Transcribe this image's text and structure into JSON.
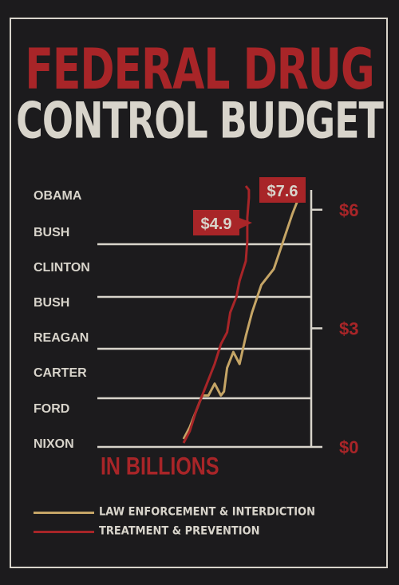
{
  "title_line1": "FEDERAL DRUG",
  "title_line2": "CONTROL BUDGET",
  "colors": {
    "background": "#1c1b1d",
    "accent_red": "#a82528",
    "gold": "#c5a566",
    "cream": "#d8d4cb"
  },
  "chart_data": {
    "type": "line",
    "title": "FEDERAL DRUG CONTROL BUDGET",
    "unit_label": "IN BILLIONS",
    "y_axis": {
      "ticks": [
        "$0",
        "$3",
        "$6"
      ],
      "tick_values": [
        0,
        3,
        6
      ],
      "range": [
        0,
        6.5
      ]
    },
    "presidencies": [
      "OBAMA",
      "BUSH",
      "CLINTON",
      "BUSH",
      "REAGAN",
      "CARTER",
      "FORD",
      "NIXON"
    ],
    "grid": true,
    "series": [
      {
        "name": "LAW ENFORCEMENT & INTERDICTION",
        "color": "#c5a566",
        "end_label": "$7.6",
        "points": [
          [
            0,
            0.2
          ],
          [
            0.4,
            0.5
          ],
          [
            0.8,
            0.9
          ],
          [
            1.2,
            1.3
          ],
          [
            1.6,
            1.3
          ],
          [
            2.0,
            1.6
          ],
          [
            2.4,
            1.3
          ],
          [
            2.6,
            1.4
          ],
          [
            2.8,
            2.0
          ],
          [
            3.2,
            2.4
          ],
          [
            3.6,
            2.1
          ],
          [
            4.0,
            2.8
          ],
          [
            4.4,
            3.4
          ],
          [
            5.0,
            4.1
          ],
          [
            5.8,
            4.5
          ],
          [
            6.4,
            5.2
          ],
          [
            7.0,
            5.9
          ],
          [
            7.6,
            6.5
          ]
        ]
      },
      {
        "name": "TREATMENT & PREVENTION",
        "color": "#a82528",
        "end_label": "$4.9",
        "points": [
          [
            0,
            0.1
          ],
          [
            0.4,
            0.4
          ],
          [
            0.8,
            0.9
          ],
          [
            1.2,
            1.3
          ],
          [
            1.6,
            1.7
          ],
          [
            2.0,
            2.1
          ],
          [
            2.4,
            2.6
          ],
          [
            2.8,
            2.9
          ],
          [
            3.0,
            3.4
          ],
          [
            3.4,
            3.8
          ],
          [
            3.6,
            4.2
          ],
          [
            4.0,
            4.7
          ],
          [
            4.1,
            5.2
          ],
          [
            4.1,
            5.8
          ],
          [
            4.2,
            6.3
          ],
          [
            4.2,
            6.5
          ],
          [
            4.0,
            6.6
          ]
        ]
      }
    ]
  }
}
